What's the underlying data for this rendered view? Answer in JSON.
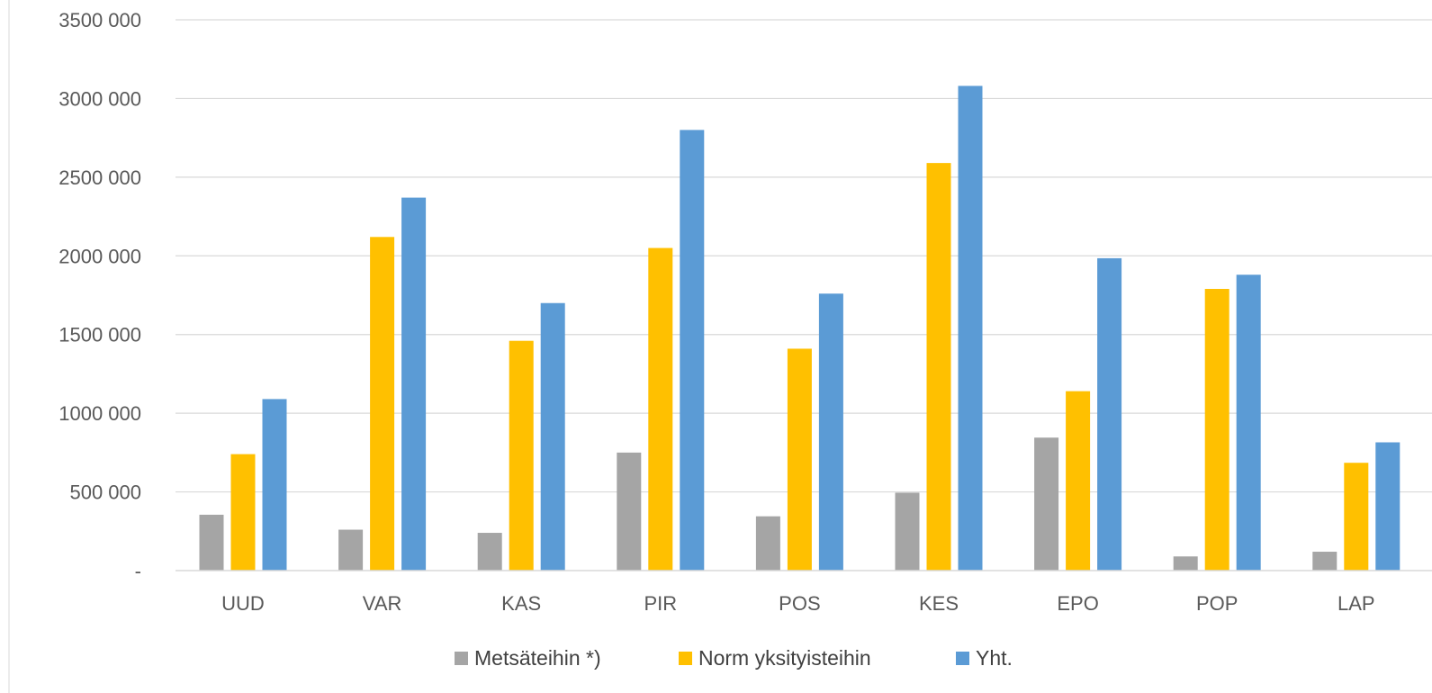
{
  "chart_data": {
    "type": "bar",
    "categories": [
      "UUD",
      "VAR",
      "KAS",
      "PIR",
      "POS",
      "KES",
      "EPO",
      "POP",
      "LAP"
    ],
    "series": [
      {
        "name": "Metsäteihin *)",
        "color": "#a5a5a5",
        "values": [
          355000,
          260000,
          240000,
          750000,
          345000,
          495000,
          845000,
          90000,
          120000
        ]
      },
      {
        "name": "Norm yksityisteihin",
        "color": "#ffc000",
        "values": [
          740000,
          2120000,
          1460000,
          2050000,
          1410000,
          2590000,
          1140000,
          1790000,
          685000
        ]
      },
      {
        "name": "Yht.",
        "color": "#5b9bd5",
        "values": [
          1090000,
          2370000,
          1700000,
          2800000,
          1760000,
          3080000,
          1985000,
          1880000,
          815000
        ]
      }
    ],
    "y_ticks": [
      {
        "value": 0,
        "label": "-"
      },
      {
        "value": 500000,
        "label": "500 000"
      },
      {
        "value": 1000000,
        "label": "1000 000"
      },
      {
        "value": 1500000,
        "label": "1500 000"
      },
      {
        "value": 2000000,
        "label": "2000 000"
      },
      {
        "value": 2500000,
        "label": "2500 000"
      },
      {
        "value": 3000000,
        "label": "3000 000"
      },
      {
        "value": 3500000,
        "label": "3500 000"
      }
    ],
    "ylim": [
      0,
      3500000
    ],
    "grid": true,
    "legend_position": "bottom",
    "gridline_color": "#d9d9d9"
  }
}
